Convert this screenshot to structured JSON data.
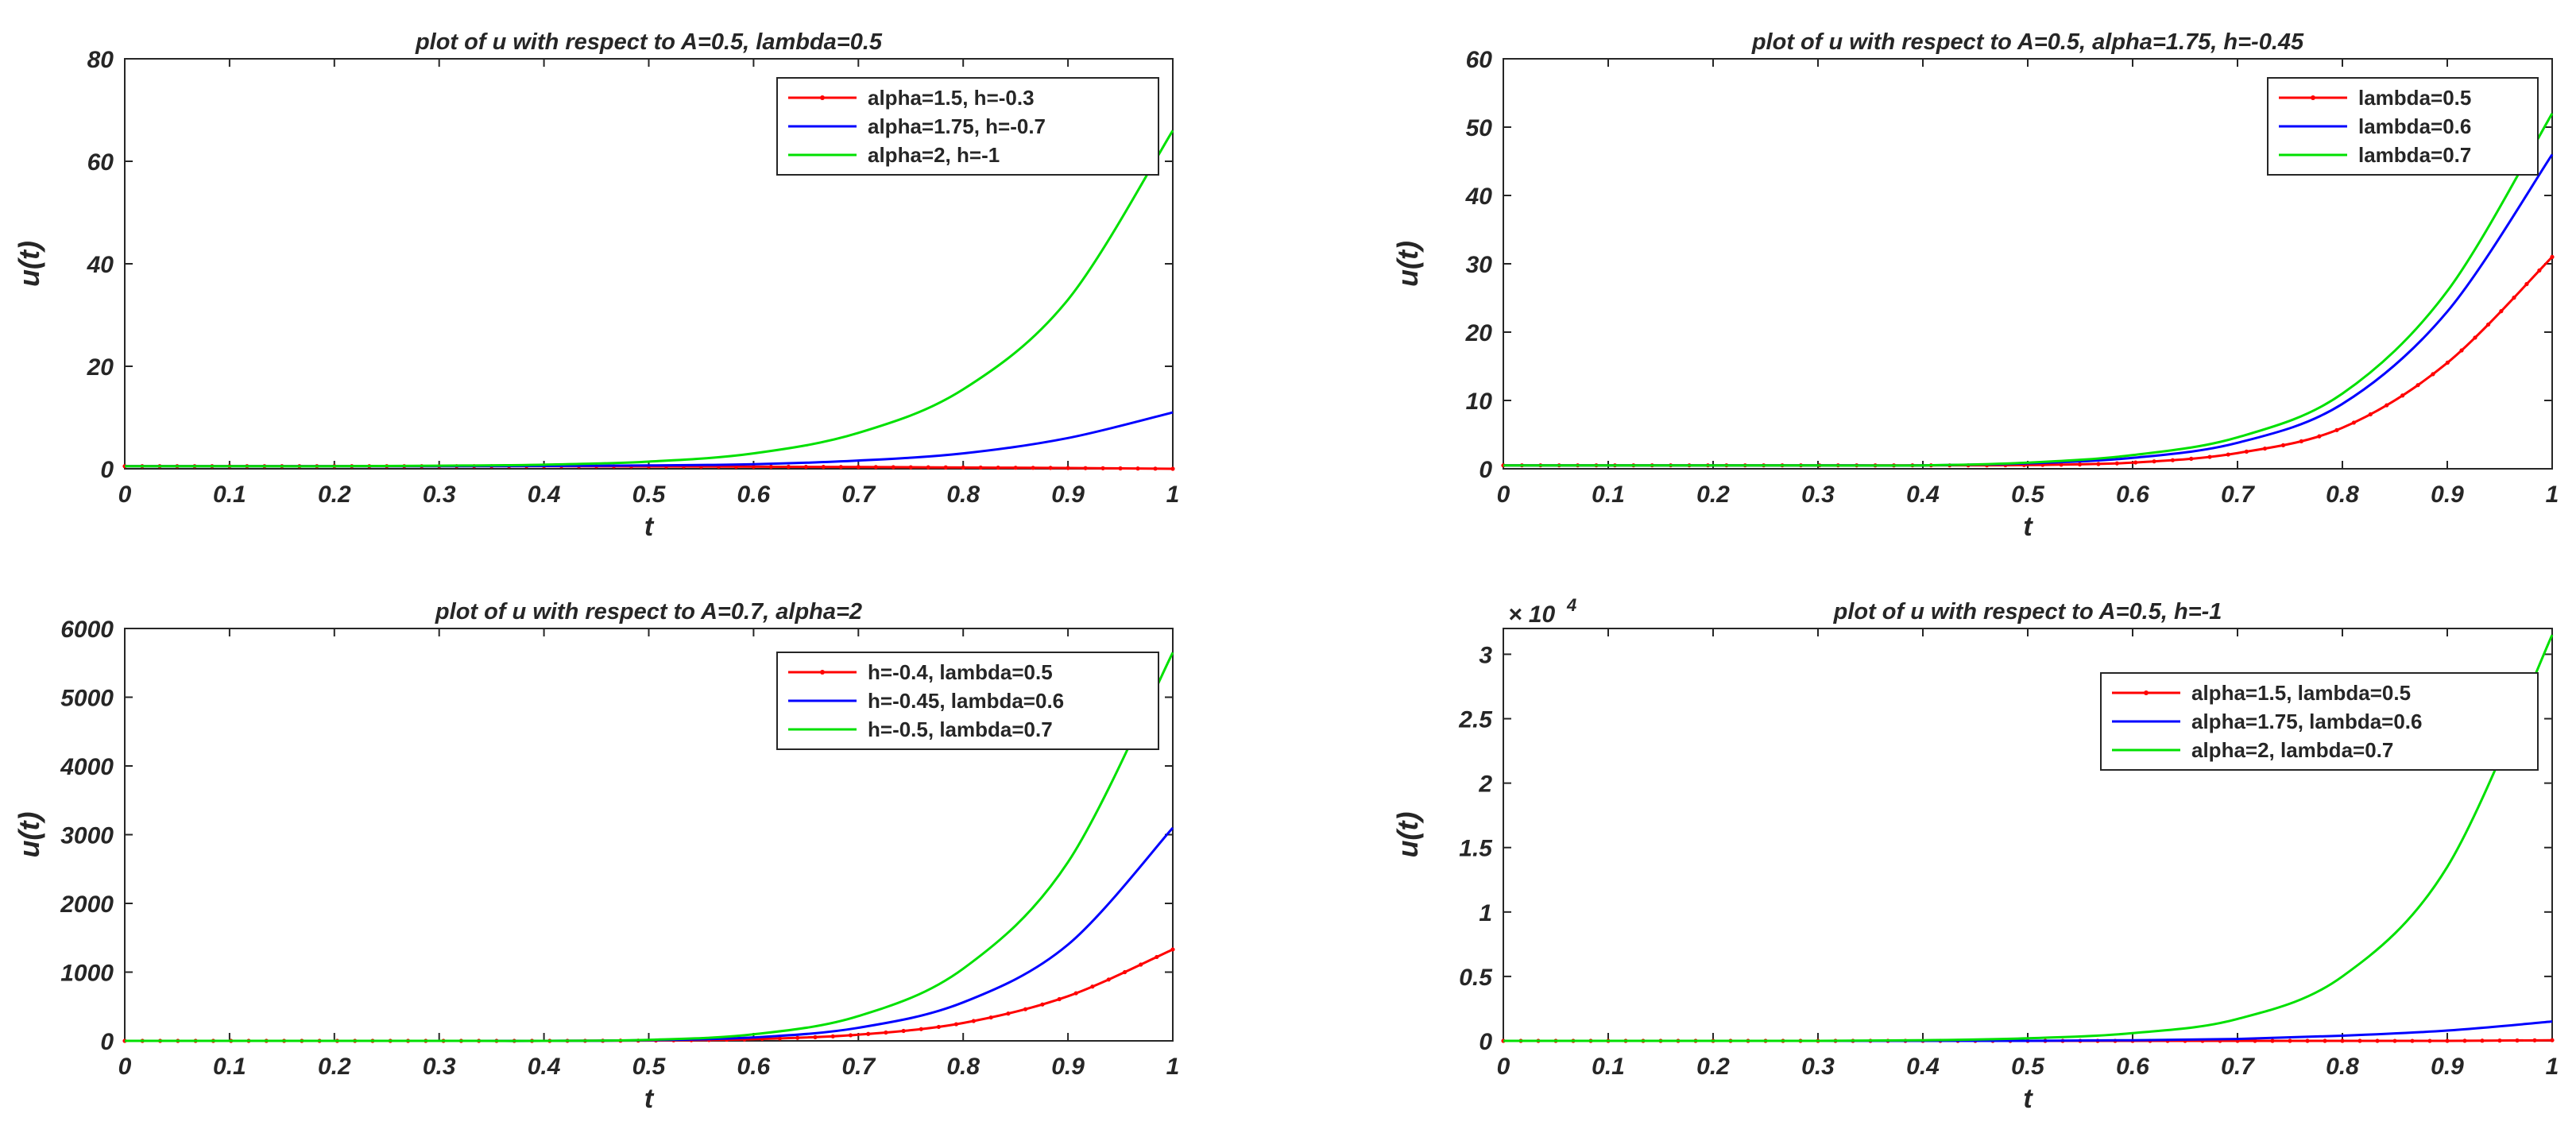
{
  "chart_data": [
    {
      "type": "line",
      "title": "plot of u with respect to A=0.5, lambda=0.5",
      "xlabel": "t",
      "ylabel": "u(t)",
      "xlim": [
        0,
        1
      ],
      "ylim": [
        0,
        80
      ],
      "xticks": [
        "0",
        "0.1",
        "0.2",
        "0.3",
        "0.4",
        "0.5",
        "0.6",
        "0.7",
        "0.8",
        "0.9",
        "1"
      ],
      "yticks": [
        "0",
        "20",
        "40",
        "60",
        "80"
      ],
      "exponent_label": "",
      "legend_placement": "top-right",
      "x": [
        0,
        0.1,
        0.2,
        0.3,
        0.4,
        0.5,
        0.6,
        0.7,
        0.8,
        0.9,
        1
      ],
      "series": [
        {
          "name": "alpha=1.5, h=-0.3",
          "color": "#ff0000",
          "markers": true,
          "values": [
            0.5,
            0.5,
            0.5,
            0.5,
            0.5,
            0.45,
            0.4,
            0.35,
            0.25,
            0.15,
            0.0
          ]
        },
        {
          "name": "alpha=1.75, h=-0.7",
          "color": "#0000ff",
          "markers": false,
          "values": [
            0.5,
            0.5,
            0.5,
            0.5,
            0.55,
            0.65,
            0.9,
            1.6,
            3.0,
            6.0,
            11.0
          ]
        },
        {
          "name": "alpha=2, h=-1",
          "color": "#00e000",
          "markers": false,
          "values": [
            0.5,
            0.5,
            0.5,
            0.6,
            0.8,
            1.4,
            3.0,
            7.0,
            15.5,
            33.0,
            66.0
          ]
        }
      ]
    },
    {
      "type": "line",
      "title": "plot of u with respect to A=0.5, alpha=1.75, h=-0.45",
      "xlabel": "t",
      "ylabel": "u(t)",
      "xlim": [
        0,
        1
      ],
      "ylim": [
        0,
        60
      ],
      "xticks": [
        "0",
        "0.1",
        "0.2",
        "0.3",
        "0.4",
        "0.5",
        "0.6",
        "0.7",
        "0.8",
        "0.9",
        "1"
      ],
      "yticks": [
        "0",
        "10",
        "20",
        "30",
        "40",
        "50",
        "60"
      ],
      "exponent_label": "",
      "legend_placement": "top-right",
      "x": [
        0,
        0.1,
        0.2,
        0.3,
        0.4,
        0.5,
        0.6,
        0.7,
        0.8,
        0.9,
        1
      ],
      "series": [
        {
          "name": "lambda=0.5",
          "color": "#ff0000",
          "markers": true,
          "values": [
            0.5,
            0.5,
            0.5,
            0.5,
            0.5,
            0.55,
            0.9,
            2.3,
            6.0,
            15.5,
            31.0
          ]
        },
        {
          "name": "lambda=0.6",
          "color": "#0000ff",
          "markers": false,
          "values": [
            0.5,
            0.5,
            0.5,
            0.5,
            0.5,
            0.8,
            1.6,
            3.8,
            9.5,
            23.0,
            46.0
          ]
        },
        {
          "name": "lambda=0.7",
          "color": "#00e000",
          "markers": false,
          "values": [
            0.5,
            0.5,
            0.5,
            0.5,
            0.5,
            0.9,
            2.0,
            4.6,
            11.0,
            26.0,
            52.0
          ]
        }
      ]
    },
    {
      "type": "line",
      "title": "plot of u with respect to  A=0.7, alpha=2",
      "xlabel": "t",
      "ylabel": "u(t)",
      "xlim": [
        0,
        1
      ],
      "ylim": [
        0,
        6000
      ],
      "xticks": [
        "0",
        "0.1",
        "0.2",
        "0.3",
        "0.4",
        "0.5",
        "0.6",
        "0.7",
        "0.8",
        "0.9",
        "1"
      ],
      "yticks": [
        "0",
        "1000",
        "2000",
        "3000",
        "4000",
        "5000",
        "6000"
      ],
      "exponent_label": "",
      "legend_placement": "top-right",
      "x": [
        0,
        0.1,
        0.2,
        0.3,
        0.4,
        0.5,
        0.6,
        0.7,
        0.8,
        0.9,
        1
      ],
      "series": [
        {
          "name": "h=-0.4, lambda=0.5",
          "color": "#ff0000",
          "markers": true,
          "values": [
            0,
            0,
            0,
            0,
            0,
            5,
            25,
            90,
            260,
            650,
            1330
          ]
        },
        {
          "name": "h=-0.45, lambda=0.6",
          "color": "#0000ff",
          "markers": false,
          "values": [
            0,
            0,
            0,
            0,
            0,
            10,
            50,
            190,
            560,
            1400,
            3100
          ]
        },
        {
          "name": "h=-0.5, lambda=0.7",
          "color": "#00e000",
          "markers": false,
          "values": [
            0,
            0,
            0,
            0,
            0,
            15,
            95,
            360,
            1050,
            2600,
            5650
          ]
        }
      ]
    },
    {
      "type": "line",
      "title": "plot of u with respect to A=0.5, h=-1",
      "xlabel": "t",
      "ylabel": "u(t)",
      "xlim": [
        0,
        1
      ],
      "ylim": [
        0,
        3.2
      ],
      "xticks": [
        "0",
        "0.1",
        "0.2",
        "0.3",
        "0.4",
        "0.5",
        "0.6",
        "0.7",
        "0.8",
        "0.9",
        "1"
      ],
      "yticks": [
        "0",
        "0.5",
        "1",
        "1.5",
        "2",
        "2.5",
        "3"
      ],
      "ytick_values": [
        0,
        0.5,
        1,
        1.5,
        2,
        2.5,
        3
      ],
      "exponent_label": "× 10",
      "exponent_power": "4",
      "legend_placement": "top-right",
      "x": [
        0,
        0.1,
        0.2,
        0.3,
        0.4,
        0.5,
        0.6,
        0.7,
        0.8,
        0.9,
        1
      ],
      "series": [
        {
          "name": "alpha=1.5, lambda=0.5",
          "color": "#ff0000",
          "markers": true,
          "values": [
            0,
            0,
            0,
            0,
            0,
            0,
            0,
            0,
            0,
            0,
            0.005
          ]
        },
        {
          "name": "alpha=1.75, lambda=0.6",
          "color": "#0000ff",
          "markers": false,
          "values": [
            0,
            0,
            0,
            0,
            0,
            0,
            0.005,
            0.015,
            0.04,
            0.08,
            0.15
          ]
        },
        {
          "name": "alpha=2, lambda=0.7",
          "color": "#00e000",
          "markers": false,
          "values": [
            0,
            0,
            0,
            0,
            0.005,
            0.02,
            0.06,
            0.17,
            0.5,
            1.35,
            3.15
          ]
        }
      ]
    }
  ]
}
